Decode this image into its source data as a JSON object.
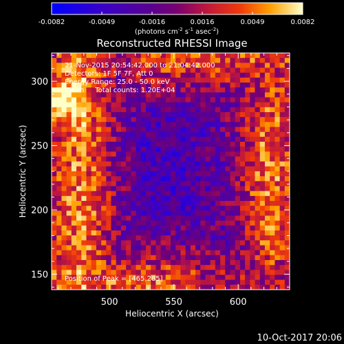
{
  "colorbar": {
    "ticks": [
      "-0.0082",
      "-0.0049",
      "-0.0016",
      "0.0016",
      "0.0049",
      "0.0082"
    ],
    "units_main": "(photons cm",
    "units_exp1": "-2",
    "units_mid": " s",
    "units_exp2": "-1",
    "units_tail": " asec",
    "units_exp3": "-2",
    "units_end": ")"
  },
  "chart_data": {
    "type": "heatmap",
    "title": "Reconstructed RHESSI Image",
    "xlabel": "Heliocentric X (arcsec)",
    "ylabel": "Heliocentric Y (arcsec)",
    "xlim": [
      455,
      640
    ],
    "ylim": [
      138,
      322
    ],
    "x_ticks": [
      "500",
      "550",
      "600"
    ],
    "y_ticks": [
      "150",
      "200",
      "250",
      "300"
    ],
    "clim": [
      -0.0082,
      0.0082
    ],
    "annotations": [
      "21-Nov-2015 20:54:42.000 to 21:04:42.000",
      "Detectors: 1F 5F 7F, Att 0",
      "Energy Range: 25.0 - 50.0 keV",
      "Clean     Total counts: 1.20E+04"
    ],
    "peak_label": "Position of Peak = [465,285]",
    "peak": [
      465,
      285
    ]
  },
  "footer": {
    "date": "10-Oct-2017 20:06"
  }
}
